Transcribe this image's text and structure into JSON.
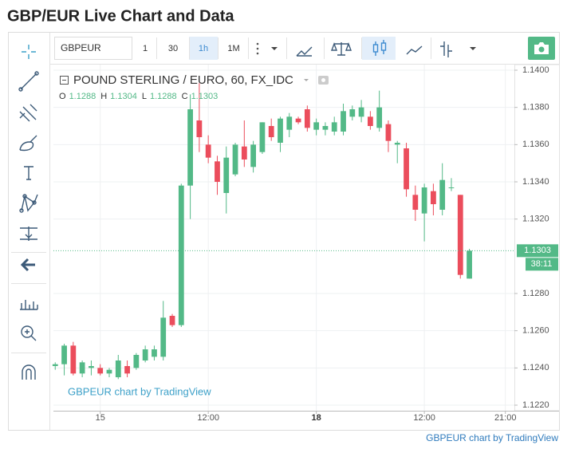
{
  "page": {
    "title": "GBP/EUR Live Chart and Data",
    "symbol": "GBPEUR",
    "intervals": [
      "1",
      "30",
      "1h",
      "1M"
    ],
    "credit": "GBPEUR chart by TradingView"
  },
  "chart_data": {
    "type": "candlestick",
    "title": "POUND STERLING / EURO, 60, FX_IDC",
    "watermark": "GBPEUR chart by TradingView",
    "ohlc_labels": [
      "O",
      "H",
      "L",
      "C"
    ],
    "x": [
      0,
      1,
      2,
      3,
      4,
      5,
      6,
      7,
      8,
      9,
      10,
      11,
      12,
      13,
      14,
      15,
      16,
      17,
      18,
      19,
      20,
      21,
      22,
      23,
      24,
      25,
      26,
      27,
      28,
      29,
      30,
      31,
      32,
      33,
      34,
      35,
      36,
      37,
      38,
      39,
      40,
      41,
      42,
      43,
      44,
      45,
      46
    ],
    "open": [
      1.1241,
      1.1242,
      1.1252,
      1.1237,
      1.124,
      1.124,
      1.1237,
      1.1235,
      1.1241,
      1.124,
      1.1244,
      1.1246,
      1.1246,
      1.1268,
      1.1263,
      1.1338,
      1.1373,
      1.136,
      1.1351,
      1.1334,
      1.1344,
      1.1359,
      1.1348,
      1.1356,
      1.137,
      1.1361,
      1.1368,
      1.1374,
      1.1379,
      1.1368,
      1.1368,
      1.1367,
      1.1367,
      1.1375,
      1.1375,
      1.1375,
      1.1369,
      1.1371,
      1.136,
      1.1358,
      1.1333,
      1.1323,
      1.1335,
      1.1325,
      1.1337,
      1.1333,
      1.1288
    ],
    "high": [
      1.1243,
      1.1253,
      1.1254,
      1.1244,
      1.1244,
      1.1242,
      1.124,
      1.1247,
      1.1244,
      1.1248,
      1.1252,
      1.1252,
      1.1276,
      1.1269,
      1.1339,
      1.1387,
      1.1393,
      1.1365,
      1.1354,
      1.1359,
      1.1361,
      1.1373,
      1.1362,
      1.1372,
      1.1374,
      1.1375,
      1.1377,
      1.1375,
      1.1381,
      1.1374,
      1.1372,
      1.1375,
      1.1382,
      1.1381,
      1.1384,
      1.1378,
      1.1389,
      1.1373,
      1.1362,
      1.1361,
      1.1338,
      1.1339,
      1.1339,
      1.135,
      1.1342,
      1.1333,
      1.1304
    ],
    "low": [
      1.1239,
      1.1236,
      1.1236,
      1.1235,
      1.1236,
      1.1236,
      1.1235,
      1.1234,
      1.1235,
      1.1239,
      1.1243,
      1.1244,
      1.1244,
      1.1262,
      1.1262,
      1.132,
      1.1356,
      1.135,
      1.1333,
      1.1323,
      1.1343,
      1.1348,
      1.1345,
      1.1355,
      1.1362,
      1.1356,
      1.1364,
      1.1371,
      1.1367,
      1.1365,
      1.1365,
      1.1365,
      1.1365,
      1.1373,
      1.1372,
      1.1368,
      1.1367,
      1.1356,
      1.135,
      1.1332,
      1.1319,
      1.1308,
      1.1322,
      1.1322,
      1.1335,
      1.1288,
      1.1288
    ],
    "close": [
      1.1242,
      1.1252,
      1.1237,
      1.1243,
      1.1241,
      1.1237,
      1.1239,
      1.1244,
      1.1237,
      1.1247,
      1.125,
      1.125,
      1.1267,
      1.1263,
      1.1338,
      1.1379,
      1.1364,
      1.1353,
      1.134,
      1.1353,
      1.136,
      1.1352,
      1.136,
      1.1372,
      1.1364,
      1.1374,
      1.1375,
      1.1372,
      1.1369,
      1.1372,
      1.137,
      1.1372,
      1.1378,
      1.1379,
      1.138,
      1.137,
      1.138,
      1.1362,
      1.1361,
      1.1336,
      1.1325,
      1.1337,
      1.1328,
      1.1341,
      1.1337,
      1.129,
      1.1303
    ],
    "up_color": "#53b987",
    "down_color": "#eb4d5c",
    "xlim": [
      -0.2,
      51
    ],
    "xticks": [
      {
        "value": 5,
        "label": "15"
      },
      {
        "value": 17,
        "label": "12:00"
      },
      {
        "value": 29,
        "label": "18"
      },
      {
        "value": 41,
        "label": "12:00"
      },
      {
        "value": 50,
        "label": "21:00"
      }
    ],
    "ylim": [
      1.1217,
      1.1403
    ],
    "yticks": [
      {
        "value": 1.122,
        "label": "1.1220"
      },
      {
        "value": 1.124,
        "label": "1.1240"
      },
      {
        "value": 1.126,
        "label": "1.1260"
      },
      {
        "value": 1.128,
        "label": "1.1280"
      },
      {
        "value": 1.132,
        "label": "1.1320"
      },
      {
        "value": 1.134,
        "label": "1.1340"
      },
      {
        "value": 1.136,
        "label": "1.1360"
      },
      {
        "value": 1.138,
        "label": "1.1380"
      },
      {
        "value": 1.14,
        "label": "1.1400"
      }
    ],
    "grid": true,
    "countdown": "38:11"
  }
}
